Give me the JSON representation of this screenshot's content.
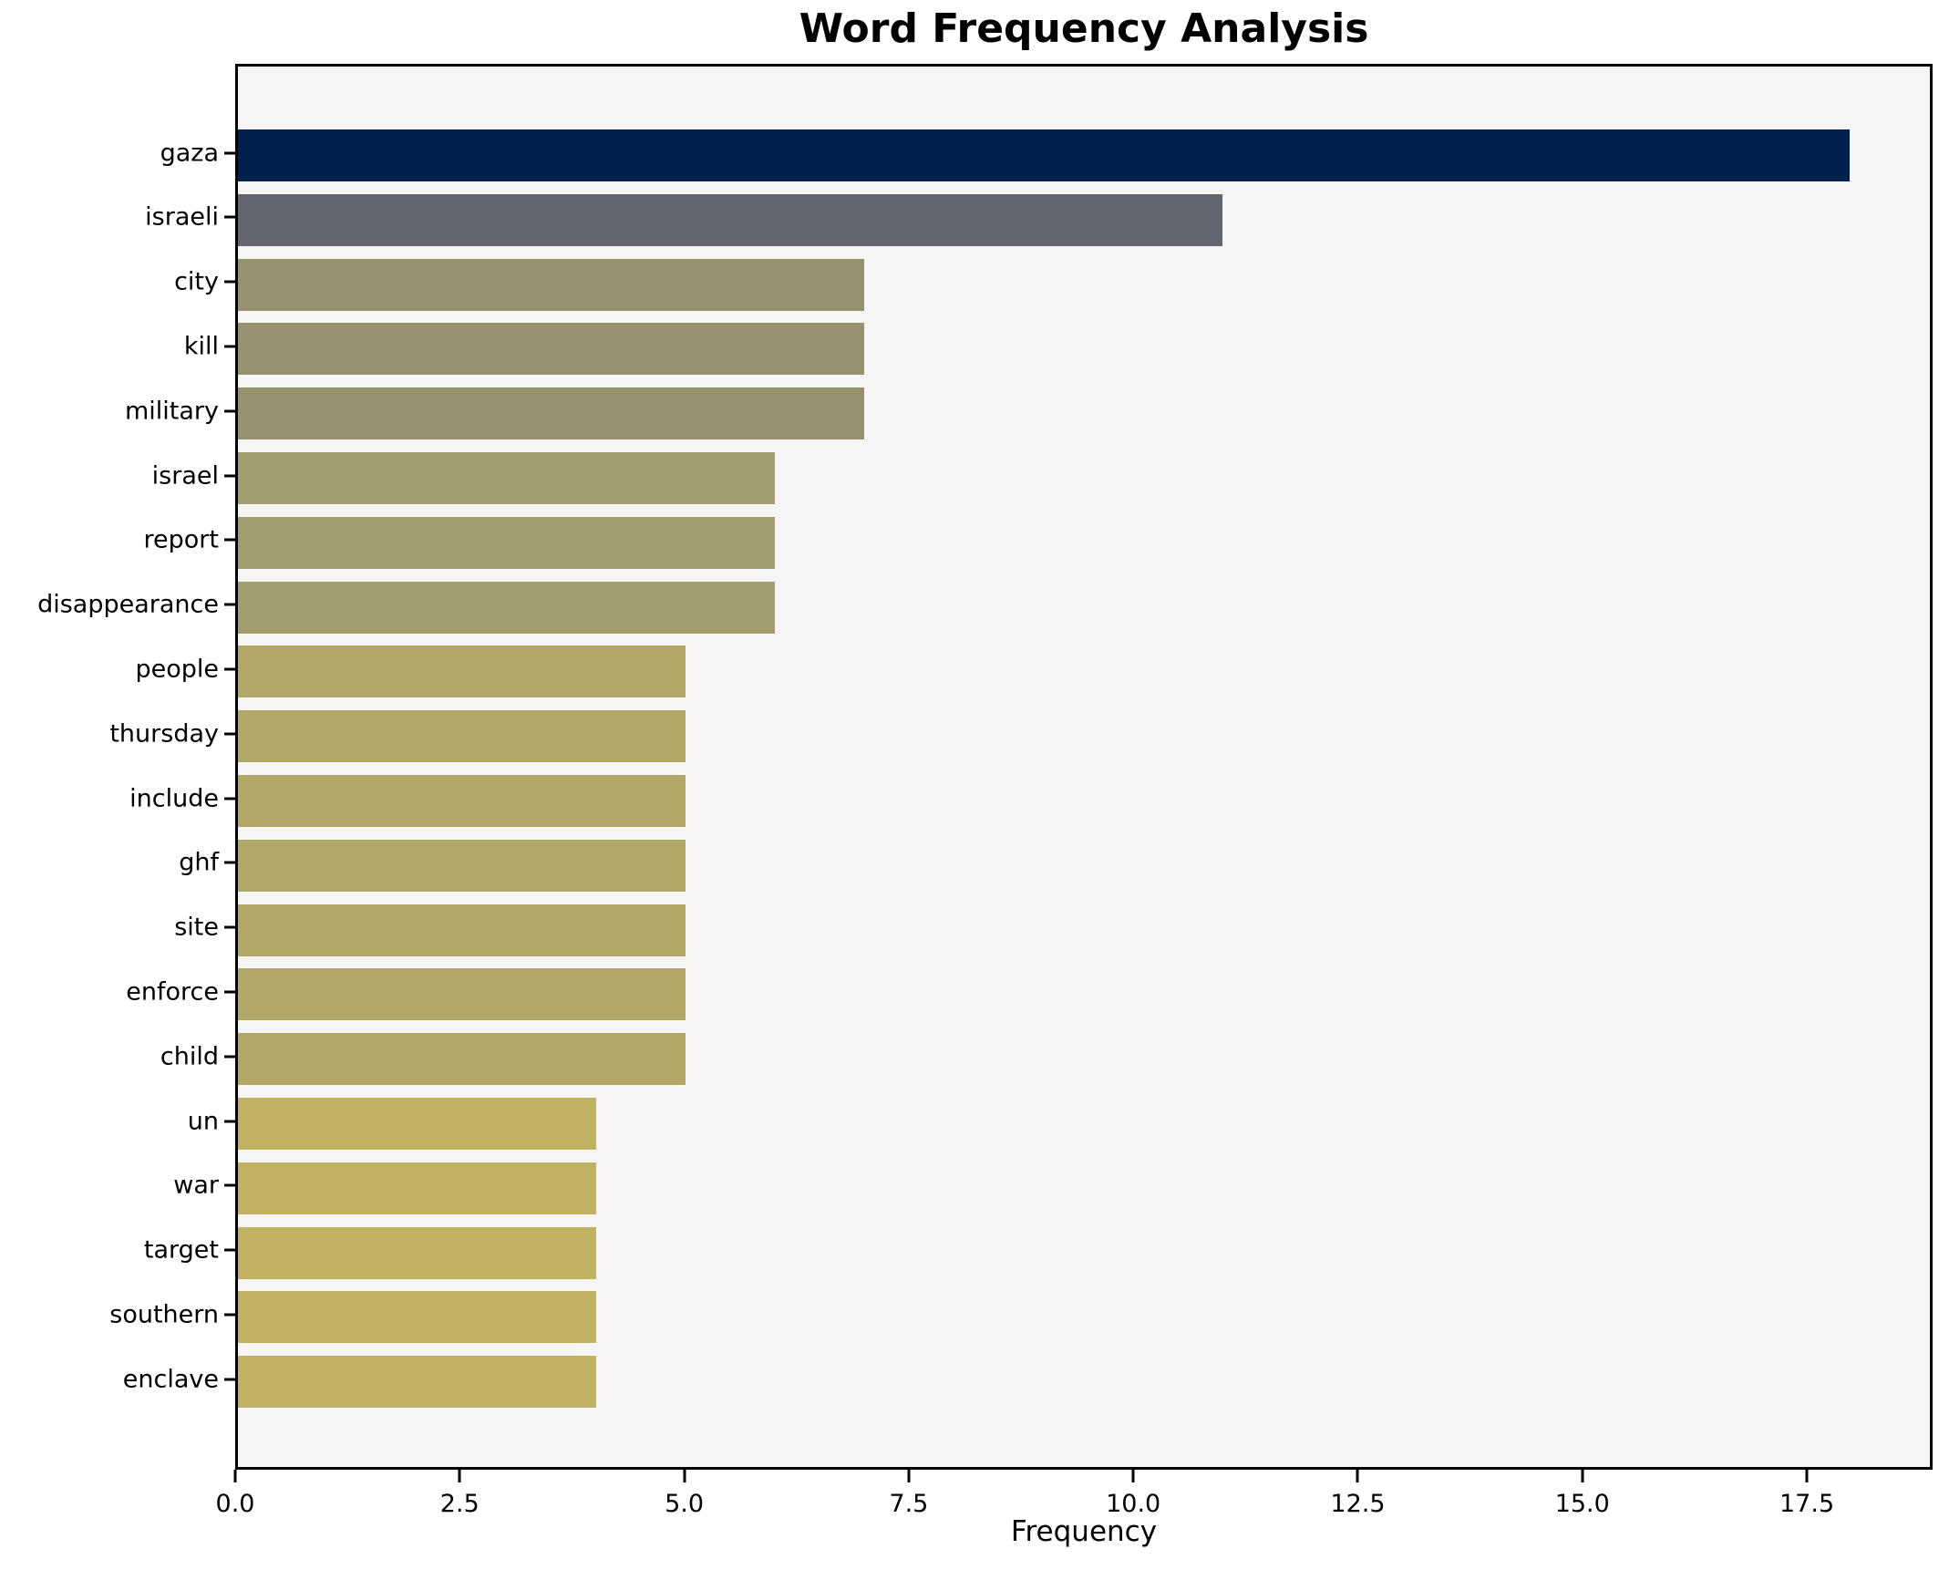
{
  "chart_data": {
    "type": "bar",
    "orientation": "horizontal",
    "title": "Word Frequency Analysis",
    "xlabel": "Frequency",
    "ylabel": "",
    "categories": [
      "gaza",
      "israeli",
      "city",
      "kill",
      "military",
      "israel",
      "report",
      "disappearance",
      "people",
      "thursday",
      "include",
      "ghf",
      "site",
      "enforce",
      "child",
      "un",
      "war",
      "target",
      "southern",
      "enclave"
    ],
    "values": [
      18,
      11,
      7,
      7,
      7,
      6,
      6,
      6,
      5,
      5,
      5,
      5,
      5,
      5,
      5,
      4,
      4,
      4,
      4,
      4
    ],
    "bar_colors": [
      "#00204d",
      "#636570",
      "#97916f",
      "#97916f",
      "#97916f",
      "#a39c6e",
      "#a39c6e",
      "#a39c6e",
      "#b1a868",
      "#b1a868",
      "#b1a868",
      "#b1a868",
      "#b1a868",
      "#b1a868",
      "#b1a868",
      "#c0b261",
      "#c0b261",
      "#c0b261",
      "#c0b261",
      "#c0b261"
    ],
    "xlim": [
      0,
      18.9
    ],
    "xticks": [
      0,
      2.5,
      5,
      7.5,
      10,
      12.5,
      15,
      17.5
    ],
    "xtick_labels": [
      "0.0",
      "2.5",
      "5.0",
      "7.5",
      "10.0",
      "12.5",
      "15.0",
      "17.5"
    ],
    "grid": false,
    "legend": null,
    "plot_background": "#f6f5f3",
    "figure_background": "#ffffff",
    "spine_color": "#000000"
  }
}
